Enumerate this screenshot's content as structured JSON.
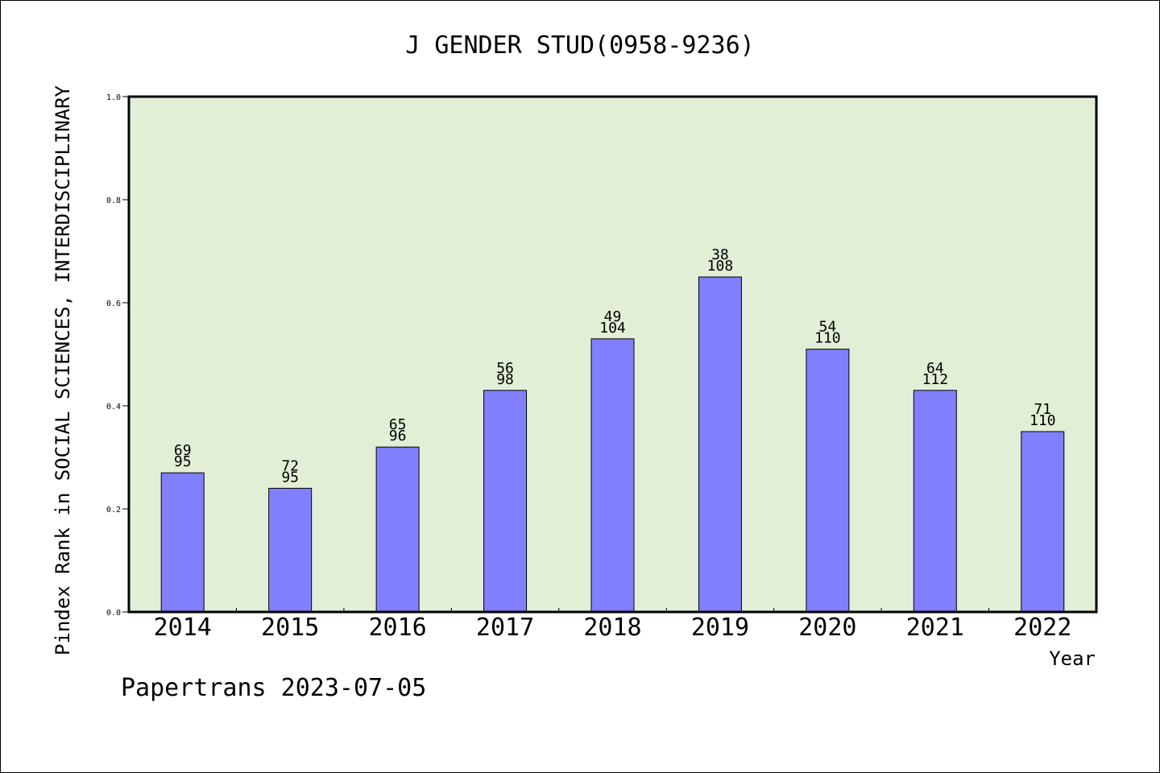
{
  "chart_data": {
    "type": "bar",
    "title": "J GENDER STUD(0958-9236)",
    "xlabel": "Year",
    "ylabel": "Pindex Rank in SOCIAL SCIENCES, INTERDISCIPLINARY",
    "categories": [
      "2014",
      "2015",
      "2016",
      "2017",
      "2018",
      "2019",
      "2020",
      "2021",
      "2022"
    ],
    "values": [
      0.27,
      0.24,
      0.32,
      0.43,
      0.53,
      0.65,
      0.51,
      0.43,
      0.35
    ],
    "rank_labels": [
      "69",
      "72",
      "65",
      "56",
      "49",
      "38",
      "54",
      "64",
      "71"
    ],
    "total_labels": [
      "95",
      "95",
      "96",
      "98",
      "104",
      "108",
      "110",
      "112",
      "110"
    ],
    "ylim": [
      0,
      1.0
    ],
    "yticks": [
      "0.0",
      "0.2",
      "0.4",
      "0.6",
      "0.8",
      "1.0"
    ],
    "grid": false,
    "colors": {
      "bar_fill": "#8080ff",
      "plot_background": "#e2efd6",
      "axis": "#000000"
    }
  },
  "footer": {
    "credit": "Papertrans 2023-07-05"
  }
}
